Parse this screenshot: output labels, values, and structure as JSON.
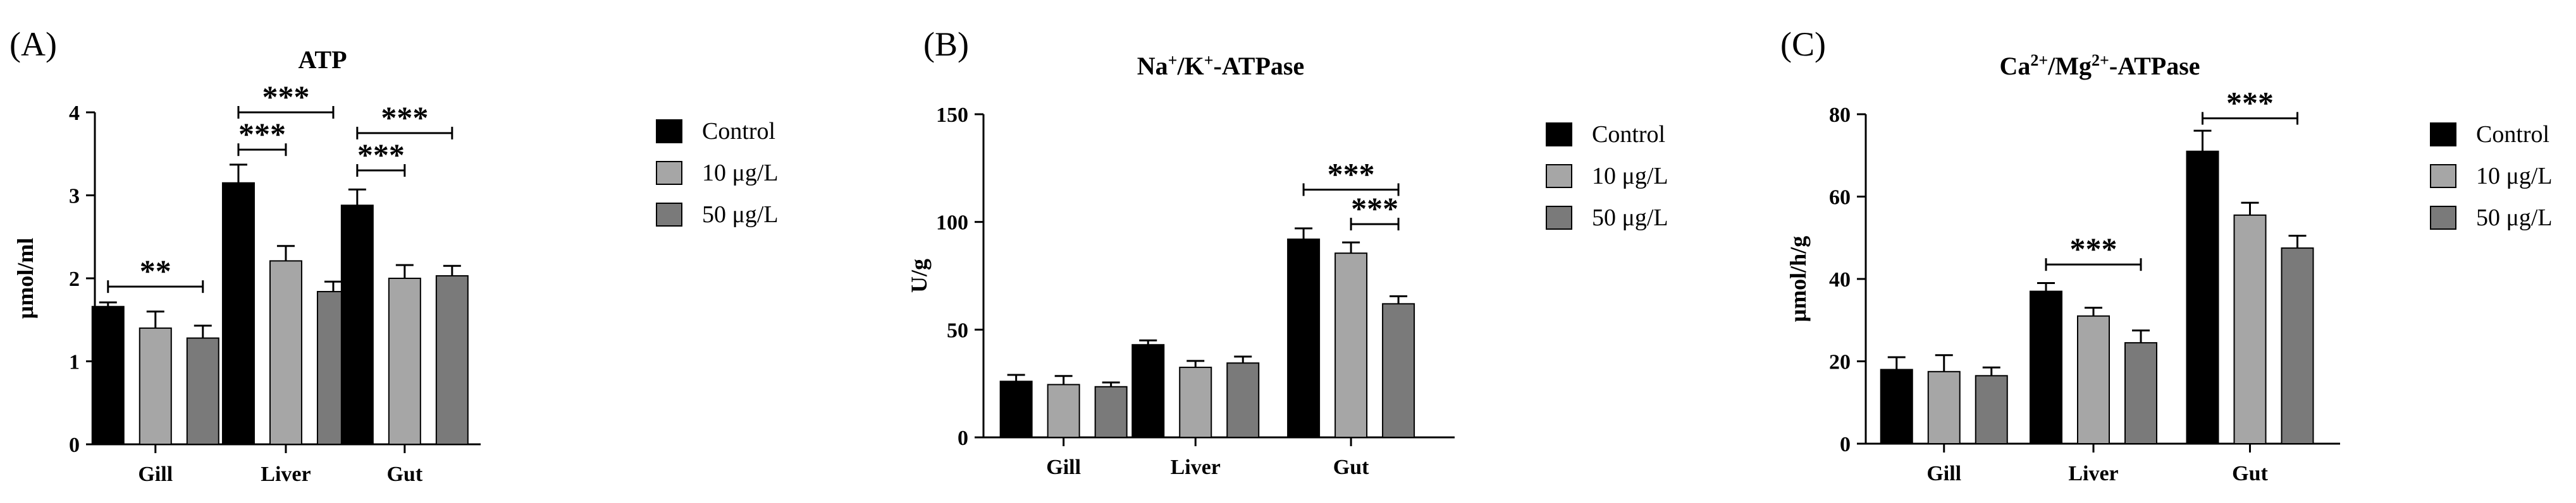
{
  "colors": {
    "Control": "#000000",
    "10 µg/L": "#a6a6a6",
    "50 µg/L": "#7a7a7a"
  },
  "chart_data": [
    {
      "type": "bar",
      "panel_label": "(A)",
      "title": "ATP",
      "title_sup": "",
      "title_suffix": "",
      "ylabel": "μmol/ml",
      "xlabel": "",
      "ylim": [
        0,
        4
      ],
      "yticks": [
        "0",
        "1",
        "2",
        "3",
        "4"
      ],
      "categories": [
        "Gill",
        "Liver",
        "Gut"
      ],
      "series": [
        {
          "name": "Control",
          "values": [
            1.66,
            3.15,
            2.88
          ],
          "errors": [
            0.05,
            0.22,
            0.19
          ]
        },
        {
          "name": "10 μg/L",
          "values": [
            1.4,
            2.21,
            2.0
          ],
          "errors": [
            0.2,
            0.18,
            0.16
          ]
        },
        {
          "name": "50 μg/L",
          "values": [
            1.28,
            1.84,
            2.03
          ],
          "errors": [
            0.15,
            0.12,
            0.12
          ]
        }
      ],
      "significance": [
        {
          "label": "**",
          "category": 0,
          "from": 0,
          "to": 2,
          "y": 1.9
        },
        {
          "label": "***",
          "category": 1,
          "from": 0,
          "to": 1,
          "y": 3.55
        },
        {
          "label": "***",
          "category": 1,
          "from": 0,
          "to": 2,
          "y": 4.0
        },
        {
          "label": "***",
          "category": 2,
          "from": 0,
          "to": 1,
          "y": 3.3
        },
        {
          "label": "***",
          "category": 2,
          "from": 0,
          "to": 2,
          "y": 3.75
        }
      ],
      "legend": {
        "position": "right",
        "entries": [
          "Control",
          "10 μg/L",
          "50 μg/L"
        ]
      }
    },
    {
      "type": "bar",
      "panel_label": "(B)",
      "title": "Na",
      "title_sup": "+",
      "title_suffix": "/K",
      "title_sup2": "+",
      "title_tail": "-ATPase",
      "ylabel": "U/g",
      "xlabel": "",
      "ylim": [
        0,
        150
      ],
      "yticks": [
        "0",
        "50",
        "100",
        "150"
      ],
      "categories": [
        "Gill",
        "Liver",
        "Gut"
      ],
      "series": [
        {
          "name": "Control",
          "values": [
            26,
            43,
            92
          ],
          "errors": [
            3,
            2,
            5
          ]
        },
        {
          "name": "10 μg/L",
          "values": [
            24.5,
            32.5,
            85.5
          ],
          "errors": [
            4,
            3,
            5
          ]
        },
        {
          "name": "50 μg/L",
          "values": [
            23.5,
            34.5,
            62
          ],
          "errors": [
            2,
            3,
            3.5
          ]
        }
      ],
      "significance": [
        {
          "label": "***",
          "category": 2,
          "from": 0,
          "to": 2,
          "y": 115
        },
        {
          "label": "***",
          "category": 2,
          "from": 1,
          "to": 2,
          "y": 99
        }
      ],
      "legend": {
        "position": "right",
        "entries": [
          "Control",
          "10 μg/L",
          "50 μg/L"
        ]
      }
    },
    {
      "type": "bar",
      "panel_label": "(C)",
      "title": "Ca",
      "title_sup": "2+",
      "title_suffix": "/Mg",
      "title_sup2": "2+",
      "title_tail": "-ATPase",
      "ylabel": "μmol/h/g",
      "xlabel": "",
      "ylim": [
        0,
        80
      ],
      "yticks": [
        "0",
        "20",
        "40",
        "60",
        "80"
      ],
      "categories": [
        "Gill",
        "Liver",
        "Gut"
      ],
      "series": [
        {
          "name": "Control",
          "values": [
            18,
            37,
            71
          ],
          "errors": [
            3,
            2,
            5
          ]
        },
        {
          "name": "10 μg/L",
          "values": [
            17.5,
            31,
            55.5
          ],
          "errors": [
            4,
            2,
            3
          ]
        },
        {
          "name": "50 μg/L",
          "values": [
            16.5,
            24.5,
            47.5
          ],
          "errors": [
            2,
            3,
            3
          ]
        }
      ],
      "significance": [
        {
          "label": "***",
          "category": 1,
          "from": 0,
          "to": 2,
          "y": 43.5
        },
        {
          "label": "***",
          "category": 2,
          "from": 0,
          "to": 2,
          "y": 79
        }
      ],
      "legend": {
        "position": "right",
        "entries": [
          "Control",
          "10 μg/L",
          "50 μg/L"
        ]
      }
    }
  ]
}
